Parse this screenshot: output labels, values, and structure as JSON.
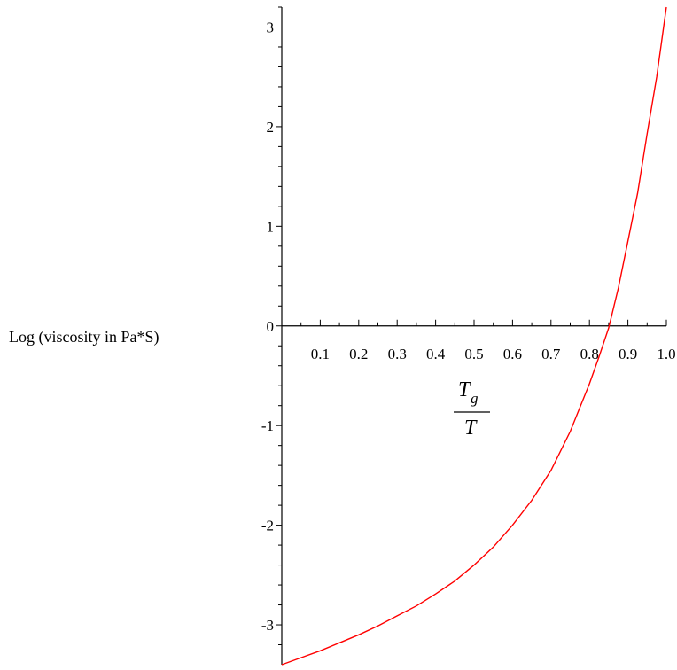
{
  "chart_data": {
    "type": "line",
    "title": "",
    "ylabel": "Log (viscosity in Pa*S)",
    "xlabel": {
      "numerator": "T",
      "numerator_subscript": "g",
      "denominator": "T"
    },
    "xlim": [
      0,
      1.0
    ],
    "ylim": [
      -3.4,
      3.2
    ],
    "grid": false,
    "legend": "none",
    "x_ticks": [
      {
        "value": 0.1,
        "label": "0.1"
      },
      {
        "value": 0.2,
        "label": "0.2"
      },
      {
        "value": 0.3,
        "label": "0.3"
      },
      {
        "value": 0.4,
        "label": "0.4"
      },
      {
        "value": 0.5,
        "label": "0.5"
      },
      {
        "value": 0.6,
        "label": "0.6"
      },
      {
        "value": 0.7,
        "label": "0.7"
      },
      {
        "value": 0.8,
        "label": "0.8"
      },
      {
        "value": 0.9,
        "label": "0.9"
      },
      {
        "value": 1.0,
        "label": "1.0"
      }
    ],
    "y_ticks": [
      {
        "value": -3,
        "label": "-3"
      },
      {
        "value": -2,
        "label": "-2"
      },
      {
        "value": -1,
        "label": "-1"
      },
      {
        "value": 0,
        "label": "0"
      },
      {
        "value": 1,
        "label": "1"
      },
      {
        "value": 2,
        "label": "2"
      },
      {
        "value": 3,
        "label": "3"
      }
    ],
    "series": [
      {
        "color": "#ff0000",
        "x": [
          0.0,
          0.05,
          0.1,
          0.15,
          0.2,
          0.25,
          0.3,
          0.35,
          0.4,
          0.45,
          0.5,
          0.55,
          0.6,
          0.65,
          0.7,
          0.75,
          0.8,
          0.825,
          0.85,
          0.875,
          0.9,
          0.925,
          0.95,
          0.975,
          1.0
        ],
        "y": [
          -3.4,
          -3.33,
          -3.26,
          -3.18,
          -3.1,
          -3.01,
          -2.91,
          -2.81,
          -2.69,
          -2.56,
          -2.4,
          -2.22,
          -2.0,
          -1.75,
          -1.45,
          -1.06,
          -0.58,
          -0.31,
          -0.02,
          0.38,
          0.85,
          1.33,
          1.93,
          2.5,
          3.2
        ]
      }
    ]
  }
}
